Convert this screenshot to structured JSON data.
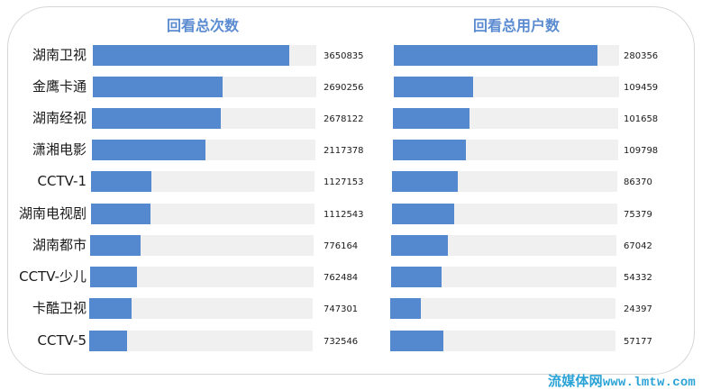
{
  "chart_data": [
    {
      "type": "bar",
      "orientation": "horizontal",
      "title": "回看总次数",
      "categories": [
        "湖南卫视",
        "金鹰卡通",
        "湖南经视",
        "潇湘电影",
        "CCTV-1",
        "湖南电视剧",
        "湖南都市",
        "CCTV-少儿",
        "卡酷卫视",
        "CCTV-5"
      ],
      "values": [
        3650835,
        2690256,
        2678122,
        2117378,
        1127153,
        1112543,
        776164,
        762484,
        747301,
        732546
      ],
      "xlim": [
        0,
        4150000
      ],
      "grid": false,
      "legend": null
    },
    {
      "type": "bar",
      "orientation": "horizontal",
      "title": "回看总用户数",
      "categories": [
        "湖南卫视",
        "金鹰卡通",
        "湖南经视",
        "潇湘电影",
        "CCTV-1",
        "湖南电视剧",
        "湖南都市",
        "CCTV-少儿",
        "卡酷卫视",
        "CCTV-5"
      ],
      "values": [
        280356,
        109459,
        101658,
        109798,
        86370,
        75379,
        67042,
        54332,
        24397,
        57177
      ],
      "xlim": [
        0,
        309000
      ],
      "grid": false,
      "legend": null
    }
  ],
  "colors": {
    "bar": "#5589cf",
    "track": "#f0f0f0",
    "title": "#5b8bd0",
    "watermark": "#2aa3d6"
  },
  "left": {
    "title": "回看总次数",
    "rows": [
      {
        "label": "湖南卫视",
        "value": "3650835",
        "pct": 88
      },
      {
        "label": "金鹰卡通",
        "value": "2690256",
        "pct": 58
      },
      {
        "label": "湖南经视",
        "value": "2678122",
        "pct": 57.5
      },
      {
        "label": "潇湘电影",
        "value": "2117378",
        "pct": 51
      },
      {
        "label": "CCTV-1",
        "value": "1127153",
        "pct": 27
      },
      {
        "label": "湖南电视剧",
        "value": "1112543",
        "pct": 26.5
      },
      {
        "label": "湖南都市",
        "value": "776164",
        "pct": 22.5
      },
      {
        "label": "CCTV-少儿",
        "value": "762484",
        "pct": 21
      },
      {
        "label": "卡酷卫视",
        "value": "747301",
        "pct": 19
      },
      {
        "label": "CCTV-5",
        "value": "732546",
        "pct": 17
      }
    ]
  },
  "right": {
    "title": "回看总用户数",
    "rows": [
      {
        "value": "280356",
        "pct": 90.5
      },
      {
        "value": "109459",
        "pct": 35
      },
      {
        "value": "101658",
        "pct": 34
      },
      {
        "value": "109798",
        "pct": 32.5
      },
      {
        "value": "86370",
        "pct": 29
      },
      {
        "value": "75379",
        "pct": 27.5
      },
      {
        "value": "67042",
        "pct": 25
      },
      {
        "value": "54332",
        "pct": 22.5
      },
      {
        "value": "24397",
        "pct": 13.5
      },
      {
        "value": "57177",
        "pct": 23.5
      }
    ]
  },
  "watermark": {
    "cn": "流媒体网",
    "url": "www.lmtw.com"
  }
}
